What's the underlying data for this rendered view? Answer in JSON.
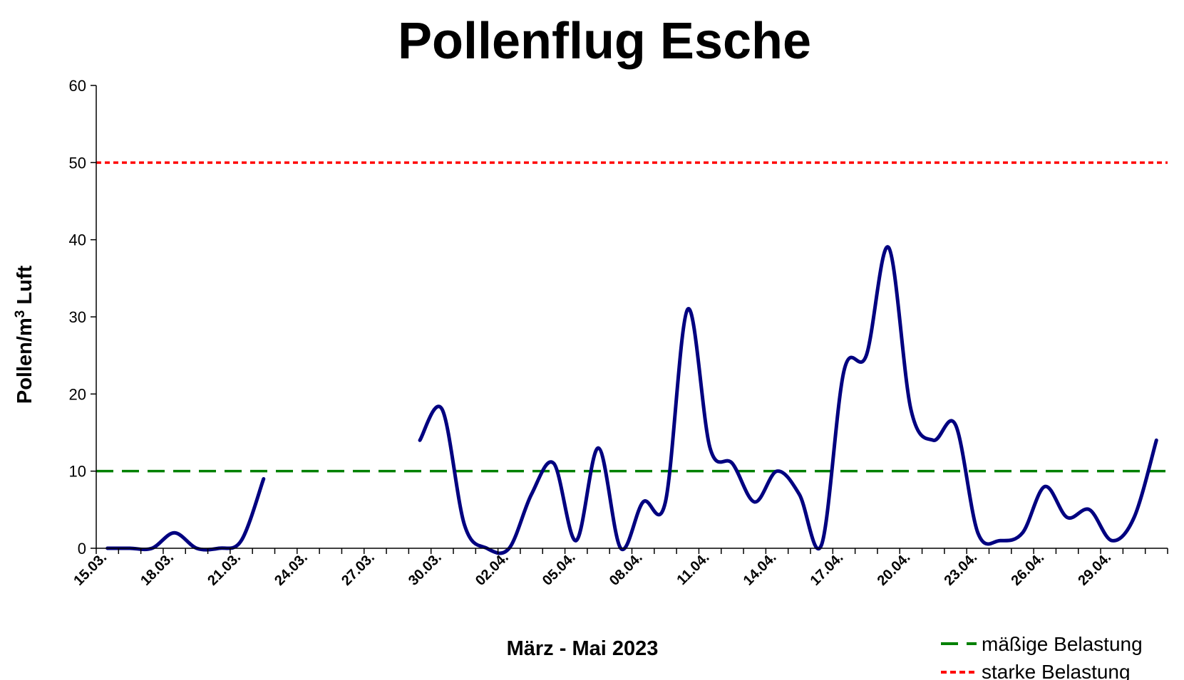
{
  "chart_data": {
    "type": "line",
    "title": "Pollenflug Esche",
    "xlabel": "März - Mai 2023",
    "ylabel_main": "Pollen/m",
    "ylabel_sup": "3",
    "ylabel_tail": " Luft",
    "ylim": [
      0,
      60
    ],
    "y_ticks": [
      0,
      10,
      20,
      30,
      40,
      50,
      60
    ],
    "x_tick_labels": [
      "15.03.",
      "18.03.",
      "21.03.",
      "24.03.",
      "27.03.",
      "30.03.",
      "02.04.",
      "05.04.",
      "08.04.",
      "11.04.",
      "14.04.",
      "17.04.",
      "20.04.",
      "23.04.",
      "26.04.",
      "29.04."
    ],
    "x": [
      "15.03.",
      "16.03.",
      "17.03.",
      "18.03.",
      "19.03.",
      "20.03.",
      "21.03.",
      "22.03.",
      "23.03.",
      "24.03.",
      "25.03.",
      "26.03.",
      "27.03.",
      "28.03.",
      "29.03.",
      "30.03.",
      "31.03.",
      "01.04.",
      "02.04.",
      "03.04.",
      "04.04.",
      "05.04.",
      "06.04.",
      "07.04.",
      "08.04.",
      "09.04.",
      "10.04.",
      "11.04.",
      "12.04.",
      "13.04.",
      "14.04.",
      "15.04.",
      "16.04.",
      "17.04.",
      "18.04.",
      "19.04.",
      "20.04.",
      "21.04.",
      "22.04.",
      "23.04.",
      "24.04.",
      "25.04.",
      "26.04.",
      "27.04.",
      "28.04.",
      "29.04.",
      "30.04.",
      "01.05."
    ],
    "series": [
      {
        "values": [
          0,
          0,
          0,
          2,
          0,
          0,
          1,
          9,
          null,
          null,
          null,
          null,
          null,
          null,
          14,
          18,
          3,
          0,
          0,
          7,
          11,
          1,
          13,
          0,
          6,
          6,
          31,
          13,
          11,
          6,
          10,
          7,
          0.5,
          23,
          25,
          39,
          18,
          14,
          16,
          2,
          1,
          2,
          8,
          4,
          5,
          1,
          4,
          14
        ],
        "color": "#000080",
        "style": "solid"
      }
    ],
    "reference_lines": [
      {
        "name": "mäßige Belastung",
        "value": 10,
        "color": "#008000",
        "style": "dashed"
      },
      {
        "name": "starke Belastung",
        "value": 50,
        "color": "#ff0000",
        "style": "dotted"
      }
    ],
    "legend_position": "bottom-right",
    "grid": false
  }
}
